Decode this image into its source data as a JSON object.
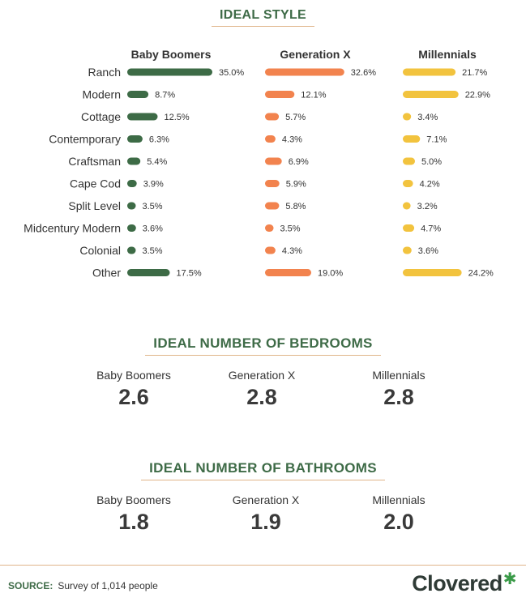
{
  "style_section": {
    "title": "IDEAL STYLE"
  },
  "bedrooms_section": {
    "title": "IDEAL NUMBER OF BEDROOMS",
    "stats": [
      {
        "label": "Baby Boomers",
        "value": "2.6"
      },
      {
        "label": "Generation X",
        "value": "2.8"
      },
      {
        "label": "Millennials",
        "value": "2.8"
      }
    ]
  },
  "bathrooms_section": {
    "title": "IDEAL NUMBER OF BATHROOMS",
    "stats": [
      {
        "label": "Baby Boomers",
        "value": "1.8"
      },
      {
        "label": "Generation X",
        "value": "1.9"
      },
      {
        "label": "Millennials",
        "value": "2.0"
      }
    ]
  },
  "footer": {
    "source_label": "SOURCE:",
    "source_text": "Survey of 1,014 people",
    "logo_text": "Clovered",
    "logo_icon": "clover-icon"
  },
  "chart_data": {
    "type": "bar",
    "title": "IDEAL STYLE",
    "value_format": "percent-1dp",
    "categories": [
      "Ranch",
      "Modern",
      "Cottage",
      "Contemporary",
      "Craftsman",
      "Cape Cod",
      "Split Level",
      "Midcentury Modern",
      "Colonial",
      "Other"
    ],
    "series": [
      {
        "name": "Baby Boomers",
        "color": "#3d6b46",
        "values": [
          35.0,
          8.7,
          12.5,
          6.3,
          5.4,
          3.9,
          3.5,
          3.6,
          3.5,
          17.5
        ]
      },
      {
        "name": "Generation X",
        "color": "#f2834e",
        "values": [
          32.6,
          12.1,
          5.7,
          4.3,
          6.9,
          5.9,
          5.8,
          3.5,
          4.3,
          19.0
        ]
      },
      {
        "name": "Millennials",
        "color": "#f2c33e",
        "values": [
          21.7,
          22.9,
          3.4,
          7.1,
          5.0,
          4.2,
          3.2,
          4.7,
          3.6,
          24.2
        ]
      }
    ],
    "grid": false
  }
}
